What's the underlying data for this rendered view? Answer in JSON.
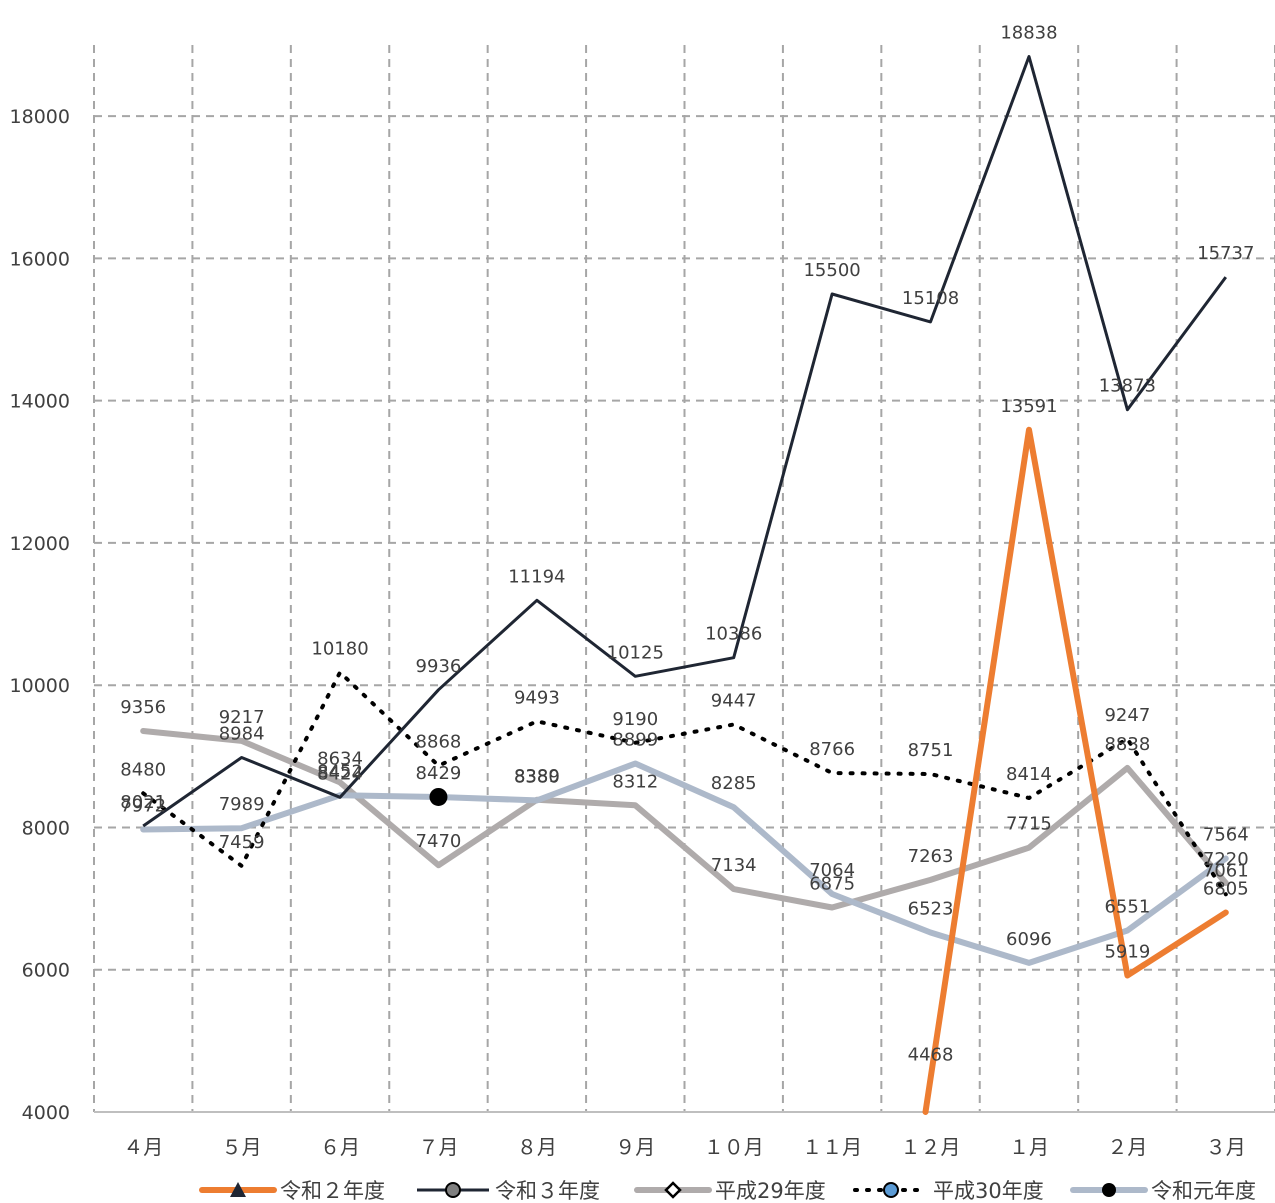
{
  "chart_data": {
    "type": "line",
    "title": "",
    "xlabel": "",
    "ylabel": "",
    "ylim": [
      4000,
      19000
    ],
    "yticks": [
      4000,
      6000,
      8000,
      10000,
      12000,
      14000,
      16000,
      18000
    ],
    "grid": true,
    "legend_position": "bottom",
    "categories": [
      "４月",
      "５月",
      "６月",
      "７月",
      "８月",
      "９月",
      "１０月",
      "１１月",
      "１２月",
      "１月",
      "２月",
      "３月"
    ],
    "series": [
      {
        "name": "令和２年度",
        "color": "#ED7D31",
        "style": "solid-thick",
        "marker": "triangle",
        "values": [
          null,
          null,
          null,
          null,
          null,
          null,
          null,
          null,
          4468,
          13591,
          5919,
          6805
        ],
        "labels": [
          "",
          "",
          "",
          "",
          "",
          "",
          "",
          "",
          "4468",
          "13591",
          "5919",
          "6805"
        ]
      },
      {
        "name": "令和３年度",
        "color": "#1F2633",
        "style": "solid-thin",
        "marker": "circle-grey",
        "values": [
          8021,
          8984,
          8424,
          9936,
          11194,
          10125,
          10386,
          15500,
          15108,
          18838,
          13873,
          15737
        ],
        "labels": [
          "8021",
          "8984",
          "8424",
          "9936",
          "11194",
          "10125",
          "10386",
          "15500",
          "15108",
          "18838",
          "13873",
          "15737"
        ]
      },
      {
        "name": "平成29年度",
        "color": "#AFABAB",
        "style": "solid-thick",
        "marker": "diamond",
        "values": [
          9356,
          9217,
          8634,
          7470,
          8389,
          8312,
          7134,
          6875,
          7263,
          7715,
          8838,
          7220
        ],
        "labels": [
          "9356",
          "9217",
          "8634",
          "7470",
          "8389",
          "8312",
          "7134",
          "6875",
          "7263",
          "7715",
          "8838",
          "7220"
        ]
      },
      {
        "name": "平成30年度",
        "color": "#000000",
        "style": "dotted",
        "marker": "circle-blue",
        "values": [
          8480,
          7459,
          10180,
          8868,
          9493,
          9190,
          9447,
          8766,
          8751,
          8414,
          9247,
          7061
        ],
        "labels": [
          "8480",
          "7459",
          "10180",
          "8868",
          "9493",
          "9190",
          "9447",
          "8766",
          "8751",
          "8414",
          "9247",
          "7061"
        ]
      },
      {
        "name": "令和元年度",
        "color": "#ADB9CA",
        "style": "solid-thick",
        "marker": "circle-black",
        "values": [
          7972,
          7989,
          8452,
          8429,
          8380,
          8899,
          8285,
          7064,
          6523,
          6096,
          6551,
          7564
        ],
        "labels": [
          "7972",
          "7989",
          "8452",
          "8429",
          "8380",
          "8899",
          "8285",
          "7064",
          "6523",
          "6096",
          "6551",
          "7564"
        ]
      }
    ]
  }
}
